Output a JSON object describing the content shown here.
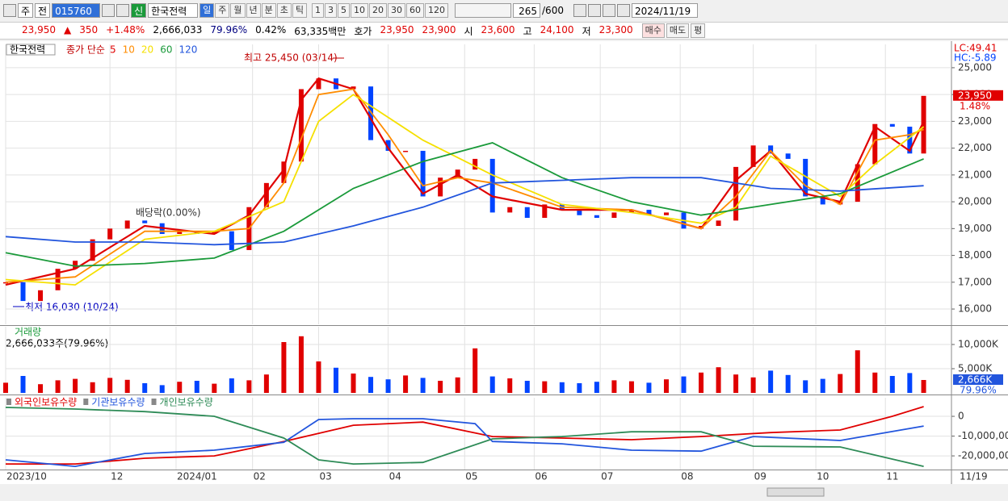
{
  "toolbar": {
    "market": "주",
    "kind": "전",
    "code": "015760",
    "credit": "신",
    "name": "한국전력",
    "periods": [
      "일",
      "주",
      "월",
      "년",
      "분",
      "초",
      "틱"
    ],
    "selected_period": 0,
    "intervals": [
      "1",
      "3",
      "5",
      "10",
      "20",
      "30",
      "60",
      "120"
    ],
    "count": "265",
    "max_count": "/600",
    "date": "2024/11/19"
  },
  "quote": [
    {
      "text": "23,950",
      "color": "#e00000"
    },
    {
      "text": "▲",
      "color": "#e00000"
    },
    {
      "text": "350",
      "color": "#e00000"
    },
    {
      "text": "+1.48%",
      "color": "#e00000"
    },
    {
      "text": "2,666,033",
      "color": "#000000"
    },
    {
      "text": "79.96%",
      "color": "#000080"
    },
    {
      "text": "0.42%",
      "color": "#000000"
    },
    {
      "text": "63,335백만",
      "color": "#000000"
    },
    {
      "text": "호가",
      "color": "#000000"
    },
    {
      "text": "23,950",
      "color": "#e00000"
    },
    {
      "text": "23,900",
      "color": "#e00000"
    },
    {
      "text": "시",
      "color": "#000000"
    },
    {
      "text": "23,600",
      "color": "#e00000"
    },
    {
      "text": "고",
      "color": "#000000"
    },
    {
      "text": "24,100",
      "color": "#e00000"
    },
    {
      "text": "저",
      "color": "#000000"
    },
    {
      "text": "23,300",
      "color": "#e00000"
    }
  ],
  "buttons": [
    "매수",
    "매도",
    "평"
  ],
  "chart_data": [
    {
      "type": "candlestick",
      "title": "한국전력",
      "subtitle": "종가 단순",
      "x": [
        0,
        5,
        10,
        15,
        20,
        25,
        30,
        35,
        40,
        45,
        50,
        55,
        60,
        65,
        70,
        75,
        80,
        85,
        90,
        95,
        100,
        105,
        110,
        115,
        120,
        125,
        130,
        135,
        140,
        145,
        150,
        155,
        160,
        165,
        170,
        175,
        180,
        185,
        190,
        195,
        200,
        205,
        210,
        215,
        220,
        225,
        230,
        235,
        240,
        245,
        250,
        255,
        260,
        264
      ],
      "values": [
        17000,
        16300,
        16700,
        17500,
        17800,
        18600,
        19000,
        19300,
        19200,
        18800,
        18900,
        18800,
        18900,
        18200,
        19800,
        20700,
        21500,
        24200,
        24600,
        24200,
        24300,
        22300,
        21900,
        21900,
        20200,
        20900,
        21200,
        21600,
        19600,
        19800,
        19400,
        19900,
        19700,
        19500,
        19400,
        19600,
        19700,
        19500,
        19600,
        19000,
        19100,
        19300,
        21300,
        22100,
        21800,
        21600,
        20200,
        19900,
        20000,
        21400,
        22900,
        22800,
        21800,
        23950
      ],
      "up_color": "#e00000",
      "down_color": "#0044ff",
      "series": [
        {
          "name": "5",
          "color": "#e00000",
          "x": [
            0,
            20,
            40,
            60,
            70,
            80,
            85,
            90,
            100,
            110,
            120,
            130,
            140,
            160,
            180,
            200,
            210,
            220,
            230,
            240,
            250,
            260,
            264
          ],
          "values": [
            16900,
            17500,
            19100,
            18800,
            19500,
            21200,
            23800,
            24600,
            24200,
            22000,
            20300,
            21000,
            20200,
            19700,
            19700,
            19000,
            20800,
            21900,
            20300,
            20000,
            22800,
            21900,
            23000
          ]
        },
        {
          "name": "10",
          "color": "#ff8c00",
          "x": [
            0,
            20,
            40,
            60,
            70,
            80,
            90,
            100,
            110,
            120,
            130,
            140,
            160,
            180,
            200,
            210,
            220,
            230,
            240,
            250,
            260,
            264
          ],
          "values": [
            17000,
            17200,
            18900,
            18900,
            19000,
            20700,
            24000,
            24200,
            22500,
            20600,
            20900,
            20700,
            19800,
            19700,
            19000,
            20200,
            21900,
            20600,
            19900,
            22300,
            22500,
            22700
          ]
        },
        {
          "name": "20",
          "color": "#f5e000",
          "x": [
            0,
            20,
            40,
            60,
            80,
            90,
            100,
            120,
            140,
            160,
            180,
            200,
            210,
            220,
            240,
            250,
            264
          ],
          "values": [
            17100,
            16900,
            18600,
            18900,
            20000,
            23000,
            24000,
            22300,
            21000,
            19900,
            19600,
            19200,
            19800,
            21700,
            20200,
            21400,
            22800
          ]
        },
        {
          "name": "60",
          "color": "#1a9a3a",
          "x": [
            0,
            20,
            40,
            60,
            80,
            100,
            120,
            140,
            160,
            180,
            200,
            220,
            240,
            264
          ],
          "values": [
            18100,
            17600,
            17700,
            17900,
            18900,
            20500,
            21500,
            22200,
            20900,
            20000,
            19500,
            19900,
            20300,
            21600
          ]
        },
        {
          "name": "120",
          "color": "#2255dd",
          "x": [
            0,
            20,
            40,
            60,
            80,
            100,
            120,
            140,
            160,
            180,
            200,
            220,
            240,
            264
          ],
          "values": [
            18700,
            18500,
            18500,
            18400,
            18500,
            19100,
            19800,
            20700,
            20800,
            20900,
            20900,
            20500,
            20400,
            20600
          ]
        }
      ],
      "xlim": [
        0,
        272
      ],
      "ylim": [
        15430,
        25870
      ],
      "yticks": [
        {
          "value": 25000,
          "label": "25,000"
        },
        {
          "value": 24000,
          "label": "24,000"
        },
        {
          "value": 23000,
          "label": "23,000"
        },
        {
          "value": 22000,
          "label": "22,000"
        },
        {
          "value": 21000,
          "label": "21,000"
        },
        {
          "value": 20000,
          "label": "20,000"
        },
        {
          "value": 19000,
          "label": "19,000"
        },
        {
          "value": 18000,
          "label": "18,000"
        },
        {
          "value": 17000,
          "label": "17,000"
        },
        {
          "value": 16000,
          "label": "16,000"
        }
      ],
      "annotations": [
        "최고 25,450 (03/14)",
        "배당락(0.00%)",
        "최저 16,030 (10/24)"
      ],
      "indicators": [
        "LC:49.41",
        "HC:-5.89"
      ],
      "last_label": "23,950",
      "change_label": "1.48%",
      "grid": true
    },
    {
      "type": "bar",
      "title": "거래량",
      "subtitle": "2,666,033주(79.96%)",
      "x": [
        0,
        5,
        10,
        15,
        20,
        25,
        30,
        35,
        40,
        45,
        50,
        55,
        60,
        65,
        70,
        75,
        80,
        85,
        90,
        95,
        100,
        105,
        110,
        115,
        120,
        125,
        130,
        135,
        140,
        145,
        150,
        155,
        160,
        165,
        170,
        175,
        180,
        185,
        190,
        195,
        200,
        205,
        210,
        215,
        220,
        225,
        230,
        235,
        240,
        245,
        250,
        255,
        260,
        264
      ],
      "values": [
        2100,
        3500,
        1800,
        2600,
        2900,
        2200,
        3100,
        2700,
        2000,
        1600,
        2300,
        2500,
        1900,
        3000,
        2600,
        3800,
        10500,
        11700,
        6500,
        5200,
        4000,
        3300,
        2800,
        3600,
        3100,
        2500,
        3200,
        9200,
        3400,
        3000,
        2500,
        2400,
        2200,
        2000,
        2300,
        2600,
        2400,
        2100,
        2800,
        3400,
        4200,
        5300,
        3800,
        3200,
        4600,
        3700,
        2600,
        2900,
        3900,
        8800,
        4200,
        3500,
        4100,
        2666
      ],
      "xlim": [
        0,
        272
      ],
      "ylim": [
        0,
        13667
      ],
      "yticks": [
        {
          "value": 5000,
          "label": "5,000K"
        },
        {
          "value": 10000,
          "label": "10,000K"
        }
      ],
      "last_label": "2,666K",
      "ratio_label": "79.96%",
      "grid": true
    },
    {
      "type": "line",
      "series": [
        {
          "name": "외국인보유수량",
          "color": "#e00000",
          "x": [
            0,
            20,
            40,
            60,
            80,
            100,
            120,
            140,
            160,
            180,
            200,
            220,
            240,
            255,
            264
          ],
          "values": [
            -24100000,
            -24100000,
            -21200000,
            -20000000,
            -12700000,
            -4500000,
            -2900000,
            -10200000,
            -11000000,
            -11800000,
            -10200000,
            -8200000,
            -6900000,
            0,
            4900000
          ]
        },
        {
          "name": "기관보유수량",
          "color": "#2255dd",
          "x": [
            0,
            20,
            40,
            60,
            80,
            90,
            100,
            120,
            135,
            140,
            160,
            180,
            200,
            215,
            240,
            264
          ],
          "values": [
            -22000000,
            -25300000,
            -18800000,
            -17100000,
            -13100000,
            -1600000,
            -1200000,
            -1200000,
            -3700000,
            -12700000,
            -13900000,
            -17100000,
            -17600000,
            -10200000,
            -12200000,
            -4900000
          ]
        },
        {
          "name": "개인보유수량",
          "color": "#2e8b57",
          "x": [
            0,
            20,
            40,
            60,
            80,
            90,
            100,
            120,
            140,
            160,
            180,
            200,
            215,
            240,
            264
          ],
          "values": [
            4500000,
            3700000,
            2400000,
            0,
            -11000000,
            -22000000,
            -24100000,
            -23300000,
            -11400000,
            -10200000,
            -7800000,
            -7800000,
            -15100000,
            -15500000,
            -25300000
          ]
        }
      ],
      "xlim": [
        0,
        272
      ],
      "ylim": [
        -26900000,
        9400000
      ],
      "yticks": [
        0,
        {
          "value": -10000000,
          "label": "-10,000,000"
        },
        {
          "value": -20000000,
          "label": "-20,000,000"
        }
      ],
      "xticks": [
        {
          "value": 0,
          "label": "2023/10"
        },
        {
          "value": 30,
          "label": "12"
        },
        {
          "value": 49,
          "label": "2024/01"
        },
        {
          "value": 71,
          "label": "02"
        },
        {
          "value": 90,
          "label": "03"
        },
        {
          "value": 110,
          "label": "04"
        },
        {
          "value": 132,
          "label": "05"
        },
        {
          "value": 152,
          "label": "06"
        },
        {
          "value": 171,
          "label": "07"
        },
        {
          "value": 194,
          "label": "08"
        },
        {
          "value": 215,
          "label": "09"
        },
        {
          "value": 233,
          "label": "10"
        },
        {
          "value": 253,
          "label": "11"
        }
      ],
      "cursor_label": "11/19",
      "grid": true
    }
  ]
}
